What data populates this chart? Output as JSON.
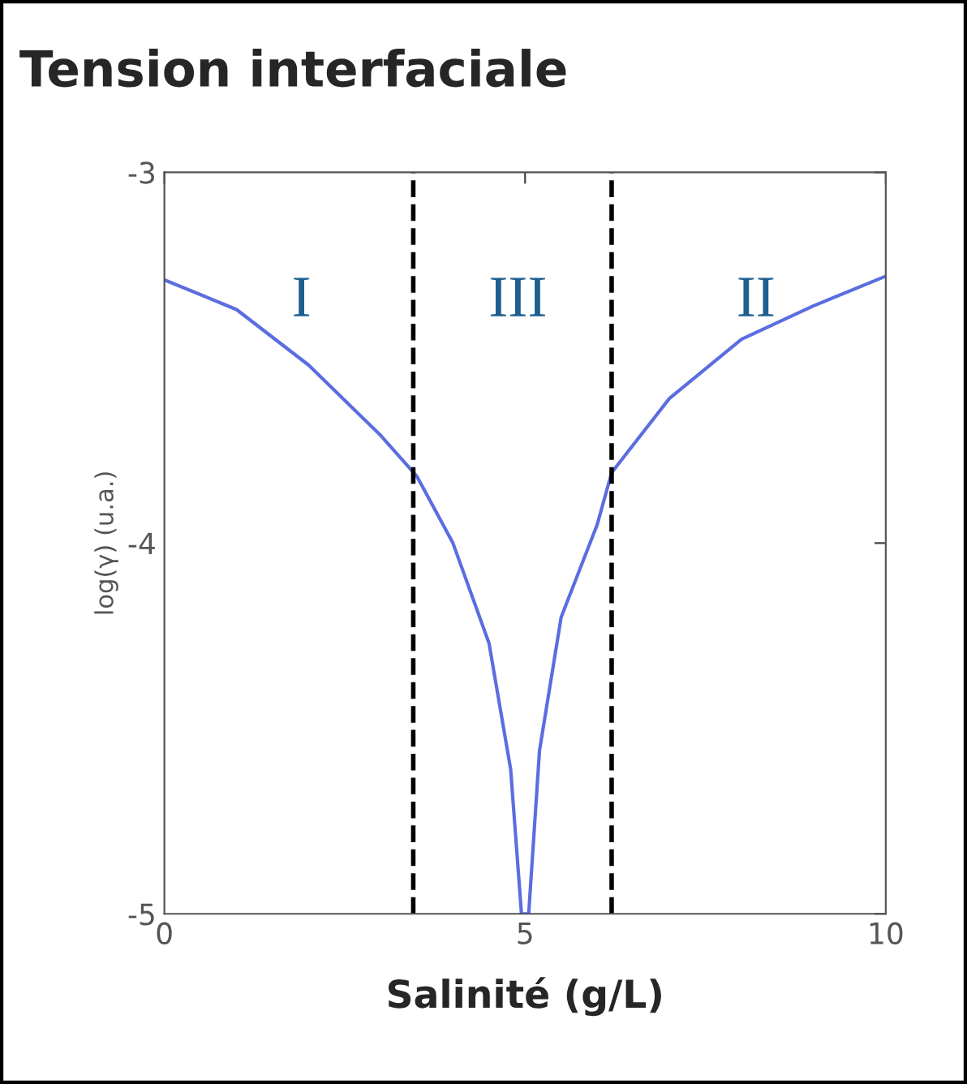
{
  "chart_data": {
    "type": "line",
    "title": "Tension interfaciale",
    "xlabel": "Salinité (g/L)",
    "ylabel": "log(γ) (u.a.)",
    "x": [
      0,
      1,
      2,
      3,
      3.5,
      4,
      4.5,
      4.8,
      4.95,
      5.05,
      5.2,
      5.5,
      6,
      6.2,
      7,
      8,
      9,
      10
    ],
    "series": [
      {
        "color": "#5a6ee0",
        "values": [
          -3.29,
          -3.37,
          -3.52,
          -3.71,
          -3.82,
          -4.0,
          -4.27,
          -4.61,
          -5.0,
          -5.0,
          -4.56,
          -4.2,
          -3.95,
          -3.81,
          -3.61,
          -3.45,
          -3.36,
          -3.28
        ]
      }
    ],
    "xlim": [
      0,
      10
    ],
    "ylim": [
      -5,
      -3
    ],
    "xticks": [
      0,
      5,
      10
    ],
    "yticks": [
      -5,
      -4,
      -3
    ],
    "grid": false,
    "marker": "none",
    "line_style": "solid",
    "ref_lines": [
      {
        "axis": "x",
        "value": 3.45,
        "color": "#000000",
        "line_style": "dashed"
      },
      {
        "axis": "x",
        "value": 6.2,
        "color": "#000000",
        "line_style": "dashed"
      }
    ],
    "annotations": [
      "I",
      "III",
      "II"
    ]
  }
}
